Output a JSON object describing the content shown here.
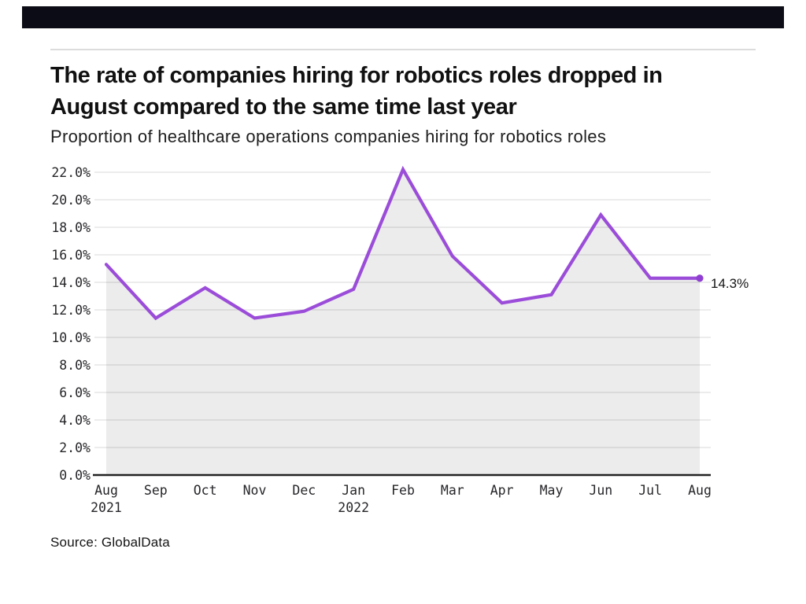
{
  "header": {
    "title_line1": "The rate of companies hiring for robotics roles dropped in",
    "title_line2": "August compared to the same time last year",
    "subtitle": "Proportion of healthcare operations companies hiring for robotics roles"
  },
  "footer": {
    "source": "Source: GlobalData"
  },
  "colors": {
    "top_bar": "#0c0c16",
    "line": "#9b4dd9",
    "marker": "#8f3fd1",
    "grid": "#e6e6e6",
    "axis": "#222222",
    "fill": "rgba(0,0,0,0.075)"
  },
  "chart_data": {
    "type": "line",
    "title": "Proportion of healthcare operations companies hiring for robotics roles",
    "categories": [
      "Aug",
      "Sep",
      "Oct",
      "Nov",
      "Dec",
      "Jan",
      "Feb",
      "Mar",
      "Apr",
      "May",
      "Jun",
      "Jul",
      "Aug"
    ],
    "year_marks": [
      {
        "index": 0,
        "label": "2021"
      },
      {
        "index": 5,
        "label": "2022"
      }
    ],
    "values": [
      15.3,
      11.4,
      13.6,
      11.4,
      11.9,
      13.5,
      22.2,
      15.9,
      12.5,
      13.1,
      18.9,
      14.3,
      14.3
    ],
    "end_label": "14.3%",
    "xlabel": "",
    "ylabel": "",
    "ylim": [
      0,
      22
    ],
    "ytick_step": 2,
    "ytick_suffix": "%",
    "grid": true,
    "legend": "none"
  }
}
